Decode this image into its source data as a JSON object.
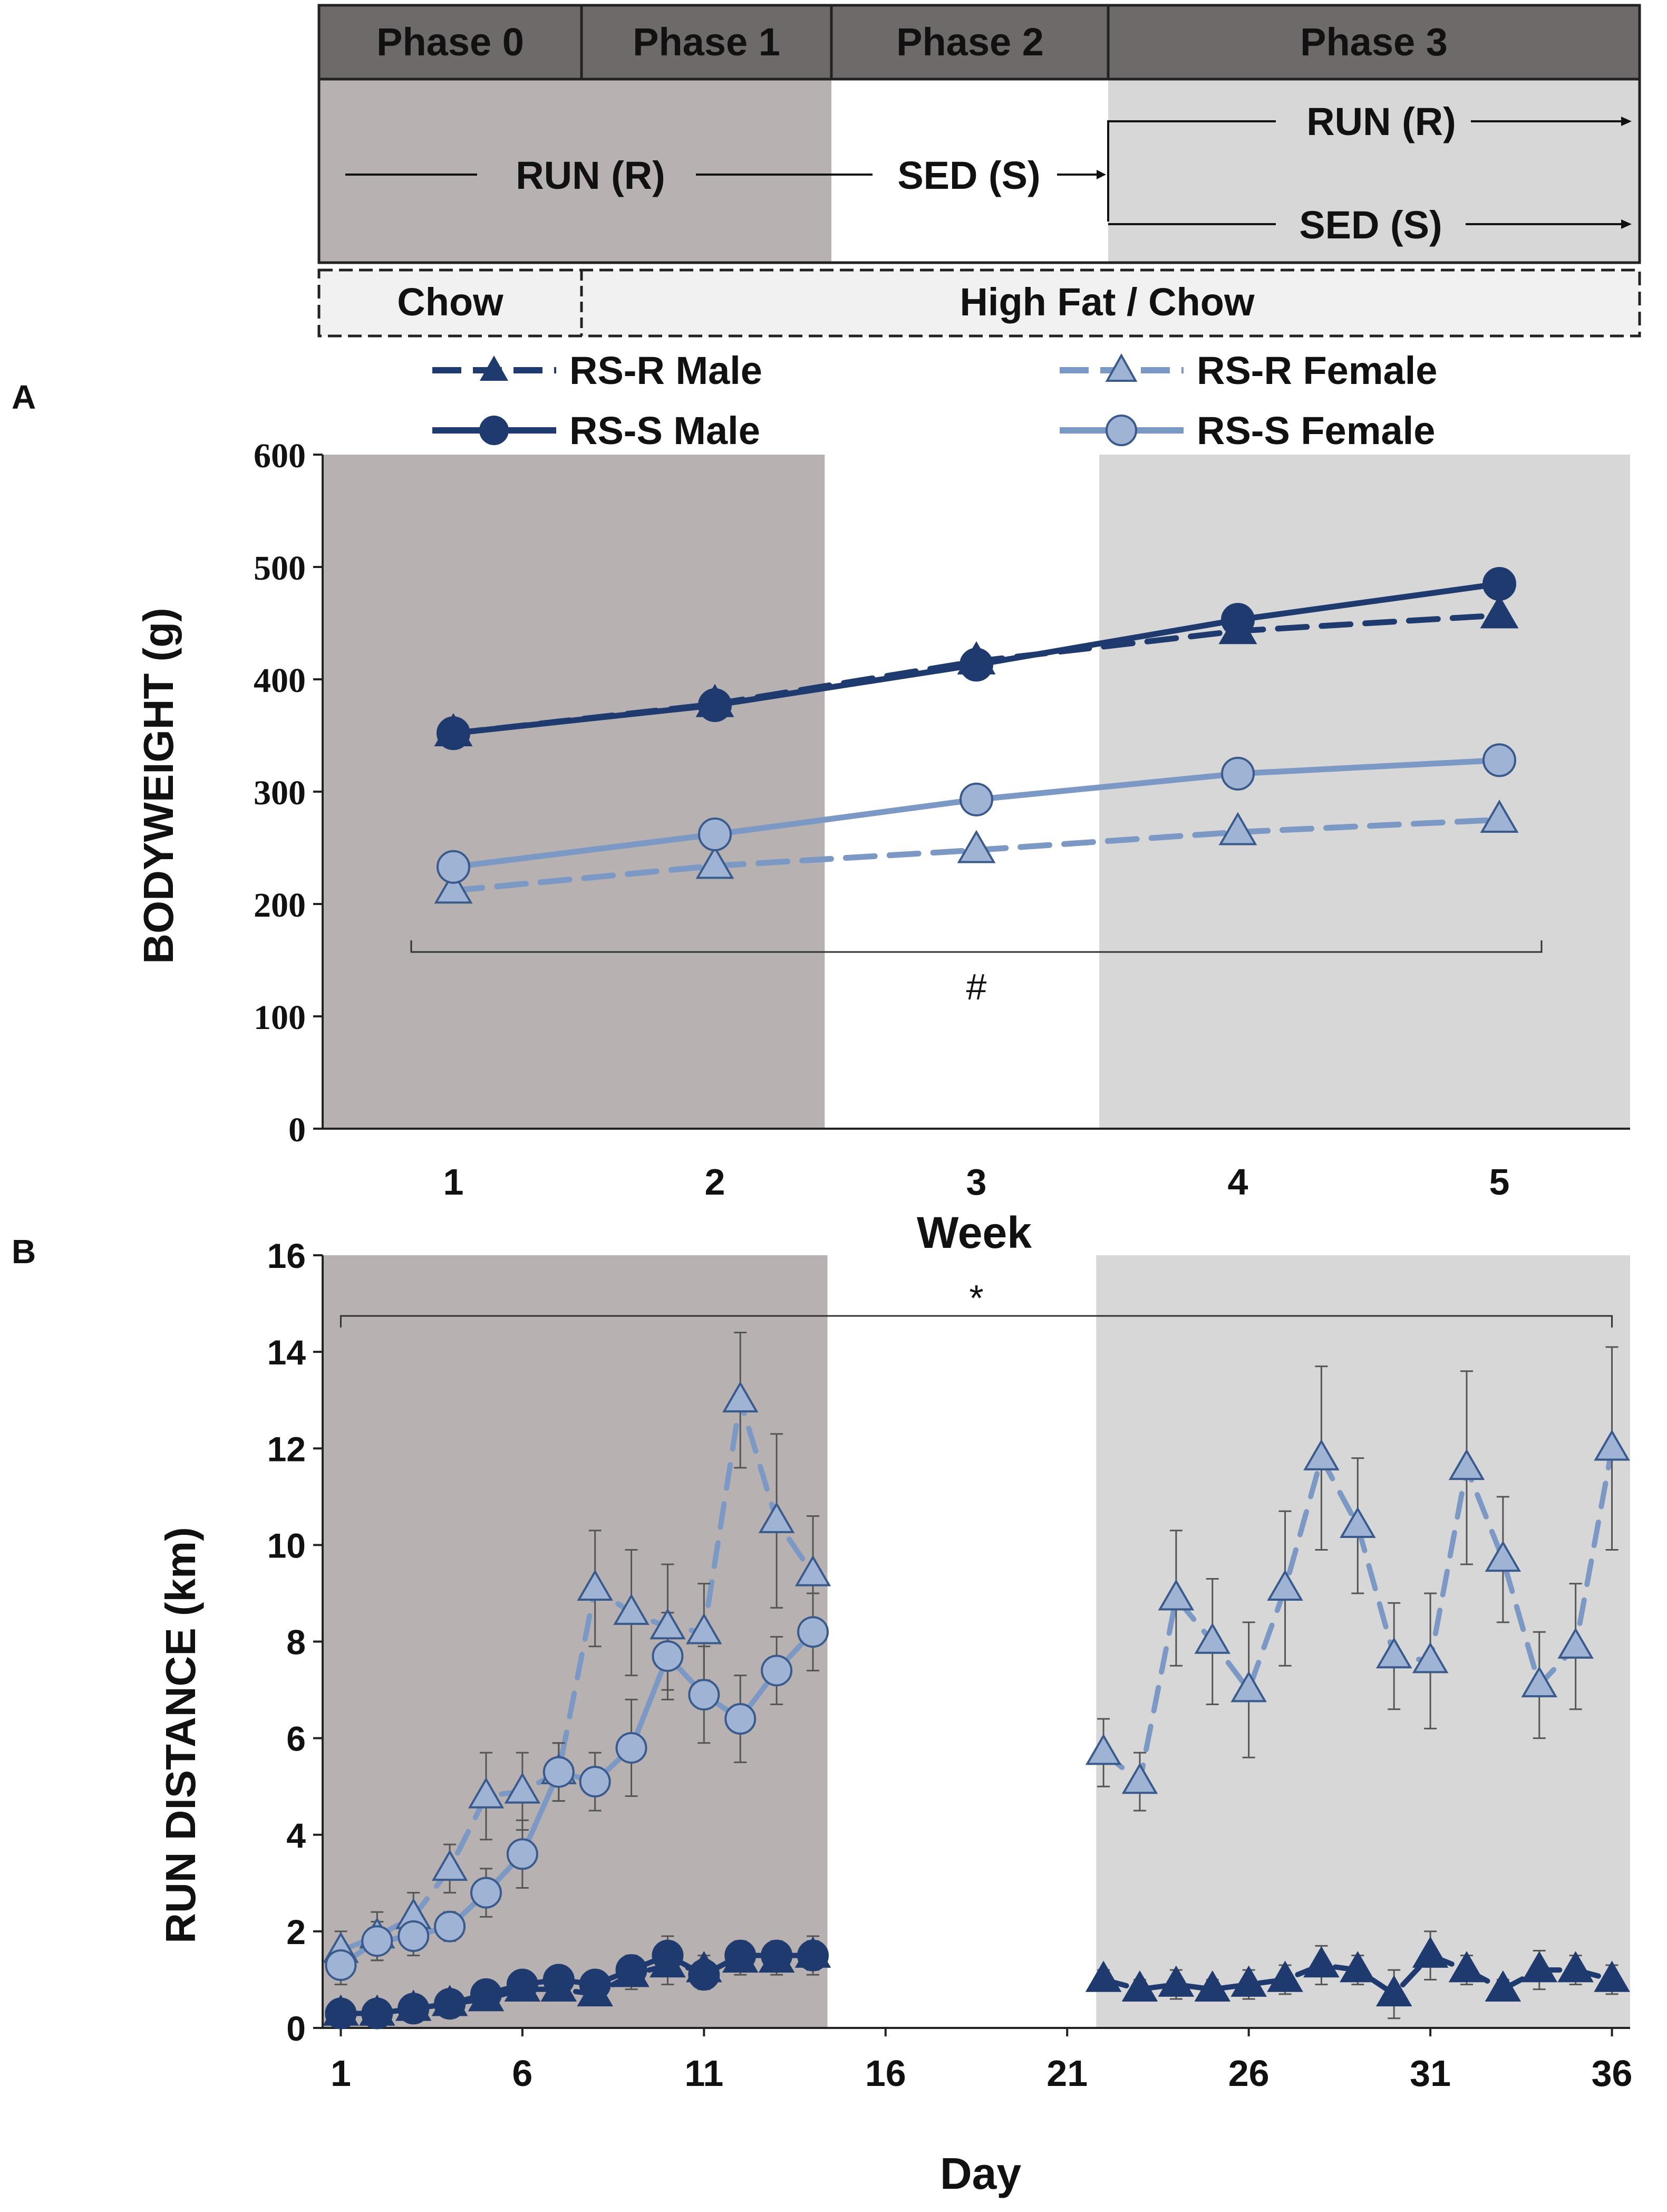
{
  "colors": {
    "male": "#1e3a6e",
    "female_fill": "#9fb4d4",
    "female_line": "#7c98c4",
    "female_edge": "#3a5a8c",
    "phase_dark": "#b7b2b1",
    "phase_light": "#d7d7d7",
    "header_bg": "#6e6a6a",
    "diet_bg": "#f1f1f1",
    "bracket": "#333333",
    "errorbar": "#555555"
  },
  "timeline": {
    "phases": [
      "Phase 0",
      "Phase 1",
      "Phase 2",
      "Phase 3"
    ],
    "run_label": "RUN (R)",
    "sed_label": "SED (S)",
    "phase3_run_label": "RUN (R)",
    "phase3_sed_label": "SED (S)",
    "diet_chow": "Chow",
    "diet_highfat": "High Fat / Chow"
  },
  "legend": {
    "rs_r_male": "RS-R Male",
    "rs_r_female": "RS-R Female",
    "rs_s_male": "RS-S Male",
    "rs_s_female": "RS-S Female"
  },
  "panel_labels": {
    "a": "A",
    "b": "B"
  },
  "chart_data": [
    {
      "type": "line",
      "panel": "A",
      "title": "",
      "xlabel": "Week",
      "ylabel": "BODYWEIGHT (g)",
      "x": [
        1,
        2,
        3,
        4,
        5
      ],
      "xlim": [
        0.5,
        5.5
      ],
      "ylim": [
        0,
        600
      ],
      "yticks": [
        0,
        100,
        200,
        300,
        400,
        500,
        600
      ],
      "xticks": [
        1,
        2,
        3,
        4,
        5
      ],
      "shaded_regions": [
        {
          "from": 0.5,
          "to": 2.42,
          "tone": "dark"
        },
        {
          "from": 3.47,
          "to": 5.5,
          "tone": "light"
        }
      ],
      "series": [
        {
          "name": "RS-R Male",
          "marker": "triangle",
          "style": "dashed",
          "color": "male",
          "values": [
            352,
            378,
            416,
            443,
            457
          ]
        },
        {
          "name": "RS-S Male",
          "marker": "circle",
          "style": "solid",
          "color": "male",
          "values": [
            352,
            377,
            413,
            453,
            485
          ]
        },
        {
          "name": "RS-R Female",
          "marker": "triangle",
          "style": "dashed",
          "color": "female",
          "values": [
            212,
            234,
            248,
            264,
            275
          ]
        },
        {
          "name": "RS-S Female",
          "marker": "circle",
          "style": "solid",
          "color": "female",
          "values": [
            233,
            262,
            293,
            316,
            328
          ]
        }
      ],
      "annotation": {
        "text": "#",
        "span": [
          1,
          5
        ]
      }
    },
    {
      "type": "line",
      "panel": "B",
      "title": "",
      "xlabel": "Day",
      "ylabel": "RUN DISTANCE (km)",
      "xlim": [
        0.5,
        36.5
      ],
      "ylim": [
        0,
        16
      ],
      "xticks": [
        1,
        6,
        11,
        16,
        21,
        26,
        31,
        36
      ],
      "yticks": [
        0,
        2,
        4,
        6,
        8,
        10,
        12,
        14,
        16
      ],
      "shaded_regions": [
        {
          "from": 0.5,
          "to": 14.4,
          "tone": "dark"
        },
        {
          "from": 21.8,
          "to": 36.5,
          "tone": "light"
        }
      ],
      "series": [
        {
          "name": "RS-R Female",
          "marker": "triangle",
          "style": "dashed",
          "color": "female",
          "segments": [
            {
              "x": [
                1,
                2,
                3,
                4,
                5,
                6,
                7,
                8,
                9,
                10,
                11,
                12,
                13,
                14
              ],
              "values": [
                1.6,
                1.9,
                2.3,
                3.3,
                4.8,
                4.9,
                5.3,
                9.1,
                8.6,
                8.3,
                8.2,
                13.0,
                10.5,
                9.4
              ],
              "errors": [
                0.4,
                0.5,
                0.5,
                0.5,
                0.9,
                0.8,
                0.6,
                1.2,
                1.3,
                1.3,
                1.0,
                1.4,
                1.8,
                1.2
              ]
            },
            {
              "x": [
                22,
                23,
                24,
                25,
                26,
                27,
                28,
                29,
                30,
                31,
                32,
                33,
                34,
                35,
                36
              ],
              "values": [
                5.7,
                5.1,
                8.9,
                8.0,
                7.0,
                9.1,
                11.8,
                10.4,
                7.7,
                7.6,
                11.6,
                9.7,
                7.1,
                7.9,
                12.0
              ],
              "errors": [
                0.7,
                0.6,
                1.4,
                1.3,
                1.4,
                1.6,
                1.9,
                1.4,
                1.1,
                1.4,
                2.0,
                1.3,
                1.1,
                1.3,
                2.1
              ]
            }
          ]
        },
        {
          "name": "RS-S Female",
          "marker": "circle",
          "style": "solid",
          "color": "female",
          "segments": [
            {
              "x": [
                1,
                2,
                3,
                4,
                5,
                6,
                7,
                8,
                9,
                10,
                11,
                12,
                13,
                14
              ],
              "values": [
                1.3,
                1.8,
                1.9,
                2.1,
                2.8,
                3.6,
                5.3,
                5.1,
                5.8,
                7.7,
                6.9,
                6.4,
                7.4,
                8.2
              ],
              "errors": [
                0.4,
                0.4,
                0.4,
                0.3,
                0.5,
                0.7,
                0.6,
                0.6,
                1.0,
                0.9,
                1.0,
                0.9,
                0.7,
                0.8
              ]
            }
          ]
        },
        {
          "name": "RS-R Male",
          "marker": "triangle",
          "style": "dashed",
          "color": "male",
          "segments": [
            {
              "x": [
                1,
                2,
                3,
                4,
                5,
                6,
                7,
                8,
                9,
                10,
                11,
                12,
                13,
                14
              ],
              "values": [
                0.3,
                0.3,
                0.4,
                0.5,
                0.6,
                0.8,
                0.8,
                0.7,
                1.1,
                1.3,
                1.2,
                1.4,
                1.4,
                1.5
              ],
              "errors": [
                0.1,
                0.1,
                0.1,
                0.1,
                0.1,
                0.2,
                0.2,
                0.2,
                0.3,
                0.4,
                0.3,
                0.3,
                0.3,
                0.4
              ]
            },
            {
              "x": [
                22,
                23,
                24,
                25,
                26,
                27,
                28,
                29,
                30,
                31,
                32,
                33,
                34,
                35,
                36
              ],
              "values": [
                1.0,
                0.8,
                0.9,
                0.8,
                0.9,
                1.0,
                1.3,
                1.2,
                0.7,
                1.5,
                1.2,
                0.8,
                1.2,
                1.2,
                1.0
              ],
              "errors": [
                0.2,
                0.2,
                0.3,
                0.2,
                0.3,
                0.3,
                0.4,
                0.3,
                0.5,
                0.5,
                0.3,
                0.2,
                0.4,
                0.3,
                0.3
              ]
            }
          ]
        },
        {
          "name": "RS-S Male",
          "marker": "circle",
          "style": "solid",
          "color": "male",
          "segments": [
            {
              "x": [
                1,
                2,
                3,
                4,
                5,
                6,
                7,
                8,
                9,
                10,
                11,
                12,
                13,
                14
              ],
              "values": [
                0.3,
                0.3,
                0.4,
                0.5,
                0.7,
                0.9,
                1.0,
                0.9,
                1.2,
                1.5,
                1.1,
                1.5,
                1.5,
                1.5
              ],
              "errors": [
                0.1,
                0.1,
                0.1,
                0.1,
                0.2,
                0.2,
                0.2,
                0.2,
                0.3,
                0.4,
                0.3,
                0.3,
                0.3,
                0.3
              ]
            }
          ]
        }
      ],
      "annotation": {
        "text": "*",
        "span": [
          1,
          36
        ]
      }
    }
  ]
}
